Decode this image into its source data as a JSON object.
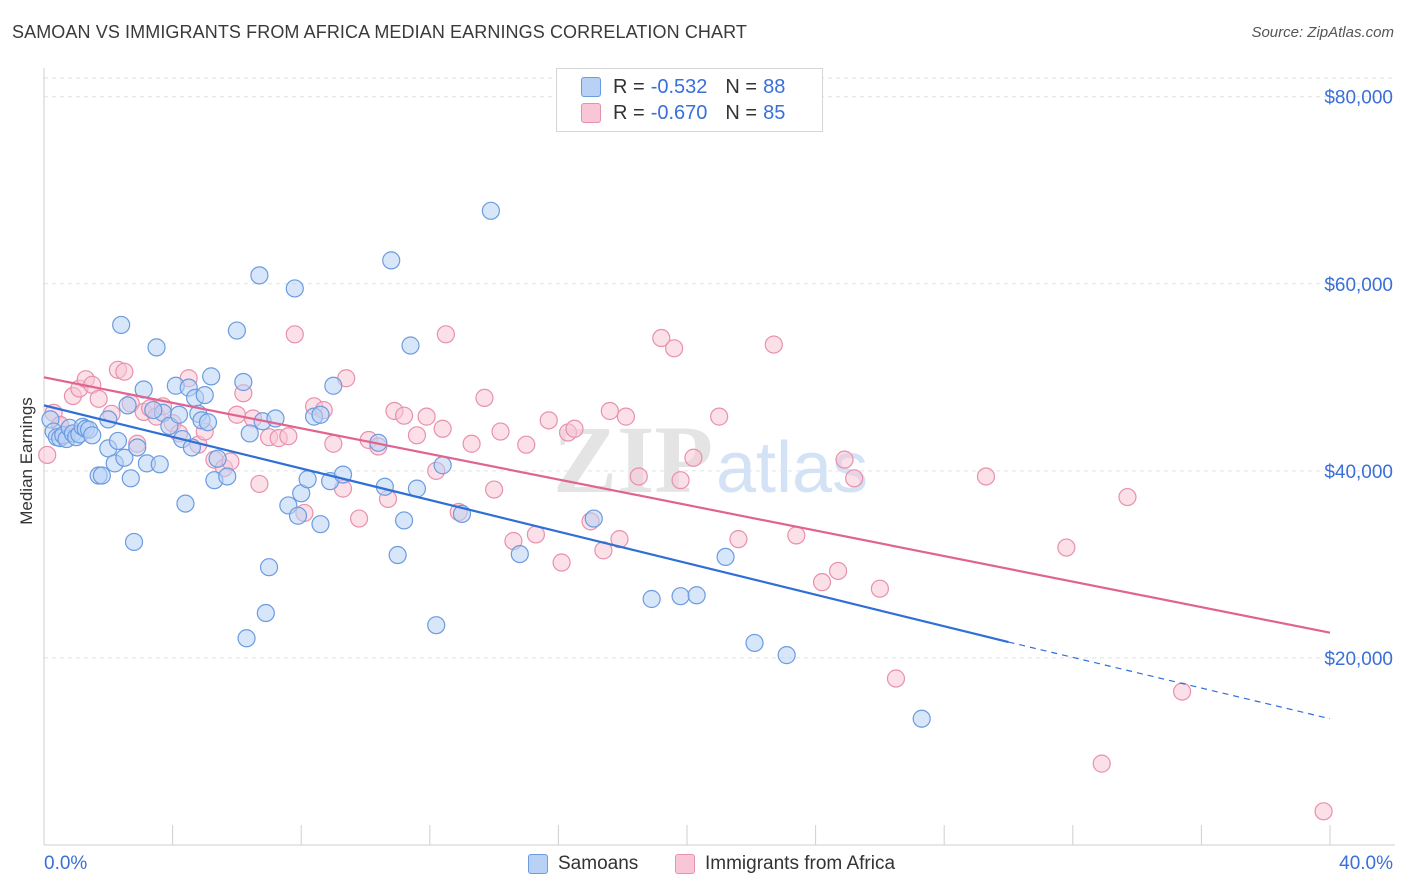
{
  "header": {
    "title": "SAMOAN VS IMMIGRANTS FROM AFRICA MEDIAN EARNINGS CORRELATION CHART",
    "source": "Source: ZipAtlas.com"
  },
  "legend": {
    "rows": [
      {
        "r_label": "R =",
        "r_value": "-0.532",
        "n_label": "N =",
        "n_value": "88"
      },
      {
        "r_label": "R =",
        "r_value": "-0.670",
        "n_label": "N =",
        "n_value": "85"
      }
    ]
  },
  "bottom_legend": {
    "series_a": "Samoans",
    "series_b": "Immigrants from Africa"
  },
  "watermark": {
    "zip": "ZIP",
    "atlas": "atlas"
  },
  "colors": {
    "blue_fill": "#b8d1f5",
    "blue_stroke": "#6b9be0",
    "blue_line": "#2f6fd6",
    "pink_fill": "#f8c6d6",
    "pink_stroke": "#e890ad",
    "pink_line": "#e0648f",
    "axis_text": "#3a6fd8",
    "grid": "#e2e2e2"
  },
  "chart_data": {
    "type": "scatter",
    "title": "SAMOAN VS IMMIGRANTS FROM AFRICA MEDIAN EARNINGS CORRELATION CHART",
    "xlabel": "",
    "ylabel": "Median Earnings",
    "xlim": [
      0,
      40
    ],
    "ylim": [
      0,
      82000
    ],
    "x_tick_labels": [
      "0.0%",
      "40.0%"
    ],
    "y_ticks": [
      20000,
      40000,
      60000,
      80000
    ],
    "y_tick_labels": [
      "$20,000",
      "$40,000",
      "$60,000",
      "$80,000"
    ],
    "grid": true,
    "legend_position": "top-center",
    "series": [
      {
        "name": "Samoans",
        "r": -0.532,
        "n": 88,
        "trend": {
          "x0": 0,
          "y0": 47000,
          "x1": 30,
          "y1": 21700,
          "dashed_to_x": 40,
          "dashed_to_y": 13500
        },
        "points": [
          [
            0.2,
            45500
          ],
          [
            0.3,
            44200
          ],
          [
            0.4,
            43600
          ],
          [
            0.5,
            43500
          ],
          [
            0.6,
            43800
          ],
          [
            0.7,
            43400
          ],
          [
            0.8,
            44600
          ],
          [
            0.9,
            44000
          ],
          [
            1.0,
            43600
          ],
          [
            1.1,
            43900
          ],
          [
            1.2,
            44700
          ],
          [
            1.3,
            44500
          ],
          [
            1.4,
            44400
          ],
          [
            1.7,
            39500
          ],
          [
            1.8,
            39500
          ],
          [
            2.0,
            42400
          ],
          [
            2.0,
            45500
          ],
          [
            2.2,
            40800
          ],
          [
            2.3,
            43200
          ],
          [
            2.4,
            55600
          ],
          [
            2.5,
            41400
          ],
          [
            2.6,
            47000
          ],
          [
            2.7,
            39200
          ],
          [
            2.8,
            32400
          ],
          [
            2.9,
            42500
          ],
          [
            3.1,
            48700
          ],
          [
            3.2,
            40800
          ],
          [
            3.5,
            53200
          ],
          [
            3.6,
            40700
          ],
          [
            3.7,
            46200
          ],
          [
            3.9,
            44800
          ],
          [
            4.1,
            49100
          ],
          [
            4.2,
            46000
          ],
          [
            4.3,
            43400
          ],
          [
            4.4,
            36500
          ],
          [
            4.5,
            48900
          ],
          [
            4.6,
            42500
          ],
          [
            4.7,
            47800
          ],
          [
            4.8,
            46100
          ],
          [
            4.9,
            45400
          ],
          [
            5.0,
            48100
          ],
          [
            5.1,
            45200
          ],
          [
            5.2,
            50100
          ],
          [
            5.3,
            39000
          ],
          [
            5.4,
            41300
          ],
          [
            5.7,
            39400
          ],
          [
            6.0,
            55000
          ],
          [
            6.2,
            49500
          ],
          [
            6.4,
            44000
          ],
          [
            6.7,
            60900
          ],
          [
            6.8,
            45300
          ],
          [
            7.0,
            29700
          ],
          [
            7.2,
            45600
          ],
          [
            7.6,
            36300
          ],
          [
            7.8,
            59500
          ],
          [
            7.9,
            35200
          ],
          [
            8.0,
            37600
          ],
          [
            8.2,
            39100
          ],
          [
            8.4,
            45800
          ],
          [
            8.6,
            34300
          ],
          [
            8.9,
            38900
          ],
          [
            9.0,
            49100
          ],
          [
            9.3,
            39600
          ],
          [
            10.4,
            43000
          ],
          [
            10.6,
            38300
          ],
          [
            10.8,
            62500
          ],
          [
            11.0,
            31000
          ],
          [
            11.2,
            34700
          ],
          [
            11.4,
            53400
          ],
          [
            11.6,
            38100
          ],
          [
            12.4,
            40600
          ],
          [
            12.2,
            23500
          ],
          [
            13.0,
            35400
          ],
          [
            13.9,
            67800
          ],
          [
            14.8,
            31100
          ],
          [
            17.1,
            34900
          ],
          [
            18.9,
            26300
          ],
          [
            19.8,
            26600
          ],
          [
            20.3,
            26700
          ],
          [
            21.2,
            30800
          ],
          [
            22.1,
            21600
          ],
          [
            23.1,
            20300
          ],
          [
            6.3,
            22100
          ],
          [
            6.9,
            24800
          ],
          [
            27.3,
            13500
          ],
          [
            8.6,
            46000
          ],
          [
            3.4,
            46500
          ],
          [
            1.5,
            43800
          ]
        ]
      },
      {
        "name": "Immigrants from Africa",
        "r": -0.67,
        "n": 85,
        "trend": {
          "x0": 0,
          "y0": 50000,
          "x1": 40,
          "y1": 22700
        },
        "points": [
          [
            0.1,
            41700
          ],
          [
            0.3,
            46200
          ],
          [
            0.5,
            44900
          ],
          [
            0.7,
            43900
          ],
          [
            0.9,
            48000
          ],
          [
            1.1,
            48800
          ],
          [
            1.3,
            49800
          ],
          [
            1.5,
            49200
          ],
          [
            1.7,
            47700
          ],
          [
            2.1,
            46100
          ],
          [
            2.3,
            50800
          ],
          [
            2.5,
            50600
          ],
          [
            2.7,
            47200
          ],
          [
            2.9,
            42900
          ],
          [
            3.1,
            46300
          ],
          [
            3.3,
            46700
          ],
          [
            3.5,
            45800
          ],
          [
            3.7,
            46900
          ],
          [
            4.0,
            45100
          ],
          [
            4.2,
            44000
          ],
          [
            4.5,
            49900
          ],
          [
            4.8,
            42800
          ],
          [
            5.0,
            44200
          ],
          [
            5.3,
            41200
          ],
          [
            5.6,
            40300
          ],
          [
            6.0,
            46000
          ],
          [
            6.2,
            48300
          ],
          [
            6.5,
            45600
          ],
          [
            6.7,
            38600
          ],
          [
            7.0,
            43600
          ],
          [
            7.3,
            43500
          ],
          [
            7.6,
            43700
          ],
          [
            7.8,
            54600
          ],
          [
            8.1,
            35500
          ],
          [
            8.4,
            46900
          ],
          [
            8.7,
            46500
          ],
          [
            9.0,
            42900
          ],
          [
            9.3,
            38100
          ],
          [
            9.4,
            49900
          ],
          [
            9.8,
            34900
          ],
          [
            10.1,
            43300
          ],
          [
            10.4,
            42600
          ],
          [
            10.7,
            37000
          ],
          [
            10.9,
            46400
          ],
          [
            11.2,
            45900
          ],
          [
            11.6,
            43800
          ],
          [
            11.9,
            45800
          ],
          [
            12.2,
            40000
          ],
          [
            12.4,
            44500
          ],
          [
            12.5,
            54600
          ],
          [
            12.9,
            35600
          ],
          [
            13.3,
            42900
          ],
          [
            13.7,
            47800
          ],
          [
            14.0,
            38000
          ],
          [
            14.2,
            44200
          ],
          [
            14.6,
            32500
          ],
          [
            15.0,
            42800
          ],
          [
            15.3,
            33200
          ],
          [
            15.7,
            45400
          ],
          [
            16.1,
            30200
          ],
          [
            16.3,
            44100
          ],
          [
            16.5,
            44500
          ],
          [
            17.0,
            34600
          ],
          [
            17.4,
            31500
          ],
          [
            17.6,
            46400
          ],
          [
            17.9,
            32700
          ],
          [
            18.1,
            45800
          ],
          [
            18.5,
            39400
          ],
          [
            19.2,
            54200
          ],
          [
            19.6,
            53100
          ],
          [
            19.8,
            39000
          ],
          [
            20.2,
            41400
          ],
          [
            21.0,
            45800
          ],
          [
            21.6,
            32700
          ],
          [
            22.7,
            53500
          ],
          [
            23.4,
            33100
          ],
          [
            24.2,
            28100
          ],
          [
            24.7,
            29300
          ],
          [
            24.9,
            41200
          ],
          [
            25.2,
            39200
          ],
          [
            26.0,
            27400
          ],
          [
            26.5,
            17800
          ],
          [
            29.3,
            39400
          ],
          [
            31.8,
            31800
          ],
          [
            33.7,
            37200
          ]
        ],
        "extra_points": [
          [
            32.9,
            8700
          ],
          [
            35.4,
            16400
          ],
          [
            39.8,
            3600
          ],
          [
            0.5,
            44900
          ],
          [
            5.8,
            41000
          ]
        ]
      }
    ]
  }
}
